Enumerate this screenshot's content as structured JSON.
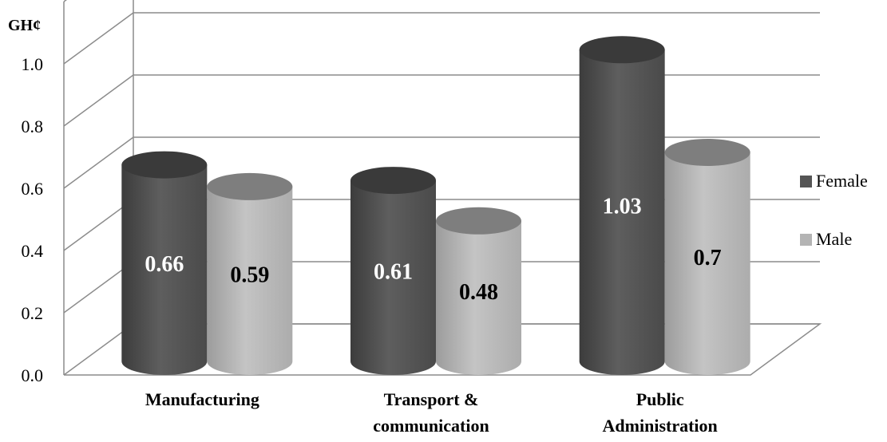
{
  "chart_data": {
    "type": "bar",
    "style": "3d-cylinder",
    "unit_label": "GH¢",
    "categories": [
      [
        "Manufacturing"
      ],
      [
        "Transport &",
        "communication"
      ],
      [
        "Public",
        "Administration"
      ]
    ],
    "series": [
      {
        "name": "Female",
        "values": [
          0.66,
          0.61,
          1.03
        ],
        "color": "#555555",
        "top_color": "#3a3a3a",
        "label_color": "#ffffff"
      },
      {
        "name": "Male",
        "values": [
          0.59,
          0.48,
          0.7
        ],
        "color": "#b4b4b4",
        "top_color": "#7e7e7e",
        "label_color": "#000000"
      }
    ],
    "data_labels": [
      [
        "0.66",
        "0.61",
        "1.03"
      ],
      [
        "0.59",
        "0.48",
        "0.7"
      ]
    ],
    "ylim": [
      0,
      1.2
    ],
    "y_ticks": [
      "0.0",
      "0.2",
      "0.4",
      "0.6",
      "0.8",
      "1.0"
    ],
    "grid": true,
    "legend_position": "right"
  }
}
